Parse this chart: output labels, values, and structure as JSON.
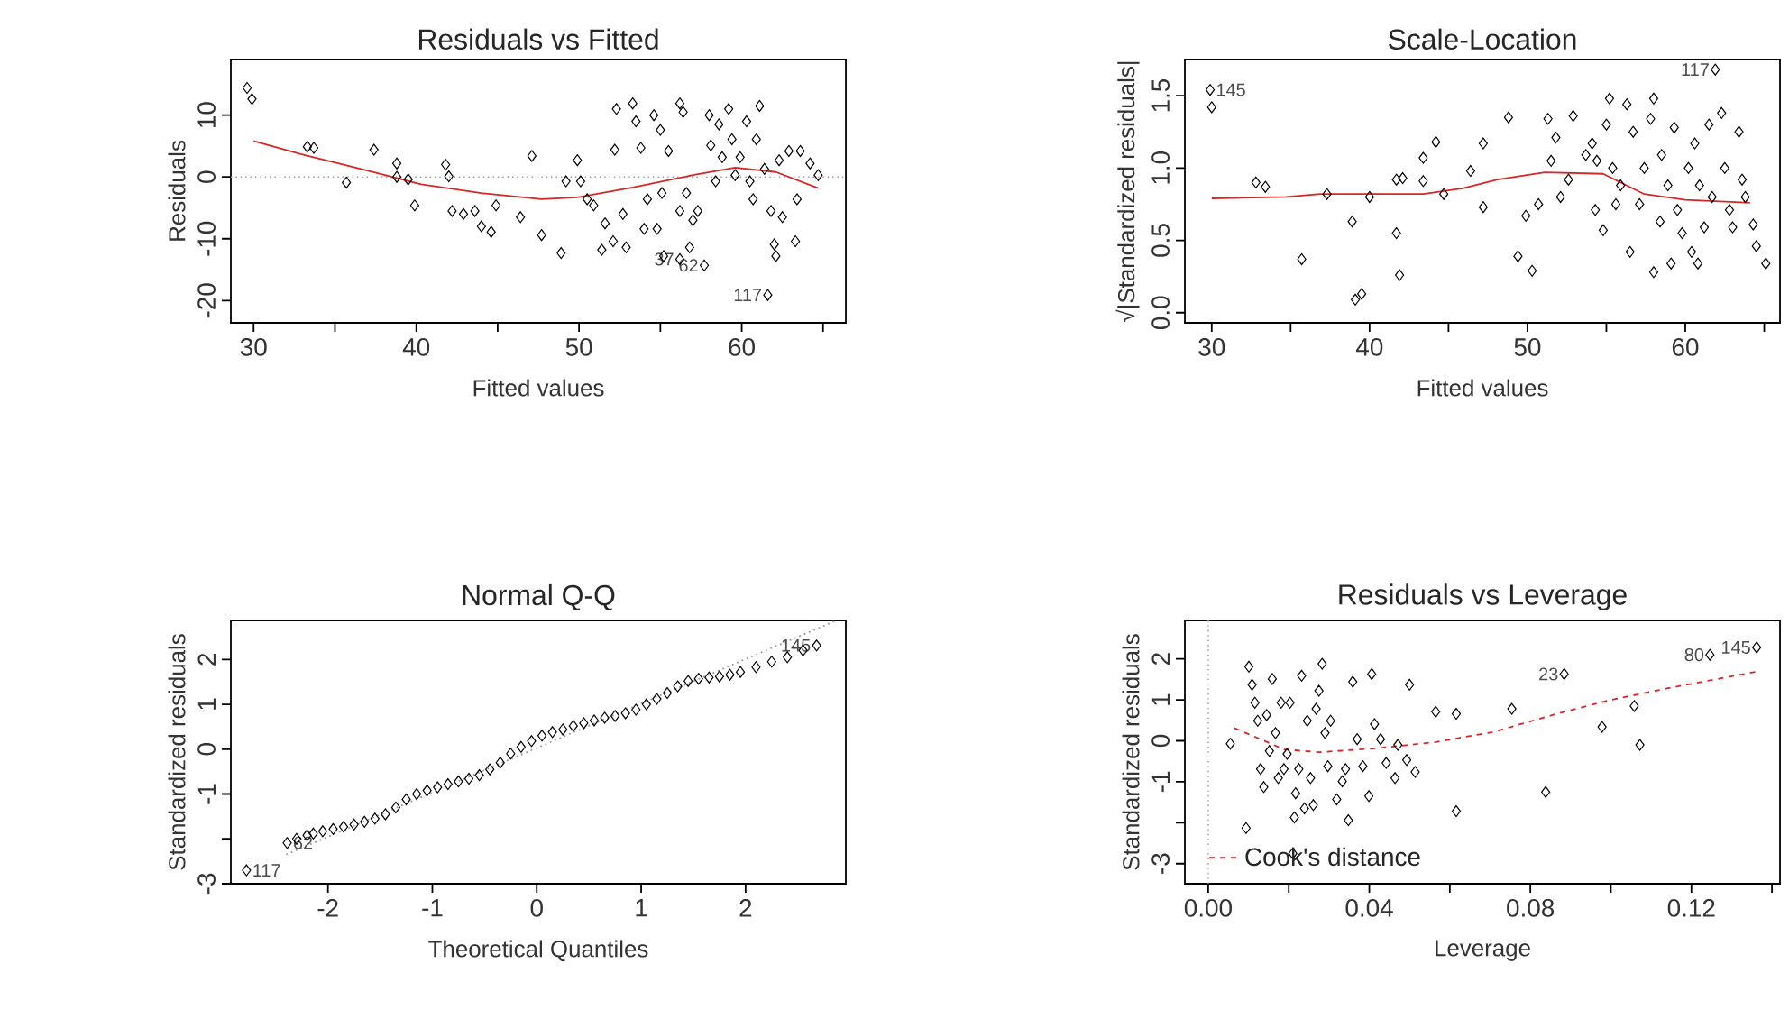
{
  "chart_data": [
    {
      "type": "scatter",
      "title": "Residuals vs Fitted",
      "xlabel": "Fitted values",
      "ylabel": "Residuals",
      "xlim": [
        28.6,
        66.4
      ],
      "ylim": [
        -23.6,
        19
      ],
      "xticks": [
        30,
        {
          "value": 35,
          "label": null
        },
        40,
        {
          "value": 45,
          "label": null
        },
        50,
        {
          "value": 55,
          "label": null
        },
        60,
        {
          "value": 65,
          "label": null
        }
      ],
      "yticks": [
        -20,
        -10,
        0,
        10
      ],
      "x": [
        29.6,
        29.9,
        33.3,
        33.7,
        35.7,
        37.4,
        38.8,
        38.8,
        39.5,
        39.9,
        41.8,
        42.0,
        42.2,
        42.9,
        43.6,
        44.0,
        44.6,
        44.9,
        46.4,
        47.1,
        47.7,
        48.9,
        49.2,
        49.9,
        50.1,
        50.5,
        50.9,
        51.4,
        51.6,
        52.1,
        52.2,
        52.3,
        52.7,
        52.9,
        53.3,
        53.5,
        53.8,
        54.0,
        54.2,
        54.6,
        54.8,
        55.0,
        55.1,
        55.2,
        55.5,
        56.2,
        56.2,
        56.4,
        56.6,
        56.8,
        57.0,
        57.3,
        57.7,
        58.0,
        58.1,
        58.4,
        58.6,
        58.8,
        59.2,
        59.4,
        59.6,
        59.9,
        60.3,
        60.5,
        60.7,
        60.9,
        61.1,
        61.4,
        61.6,
        61.8,
        62.0,
        62.1,
        62.3,
        62.5,
        62.9,
        63.3,
        63.4,
        63.6,
        64.2,
        64.7,
        56.2
      ],
      "series": [
        {
          "color": "#000000",
          "marker": "diamond",
          "values": [
            14.4,
            12.6,
            4.9,
            4.7,
            -0.9,
            4.4,
            2.2,
            0,
            -0.4,
            -4.6,
            2.0,
            0.1,
            -5.5,
            -6.0,
            -5.5,
            -8.0,
            -8.9,
            -4.6,
            -6.5,
            3.4,
            -9.4,
            -12.3,
            -0.7,
            2.7,
            -0.7,
            -3.6,
            -4.6,
            -11.8,
            -7.5,
            -10.4,
            4.4,
            11,
            -6.0,
            -11.4,
            11.9,
            9.0,
            4.7,
            -8.4,
            -3.6,
            10,
            -8.4,
            7.6,
            -2.6,
            -12.8,
            4.2,
            11.9,
            -5.5,
            10.5,
            -2.6,
            -11.4,
            -7.0,
            -5.5,
            -14.3,
            10,
            5.1,
            -0.7,
            8.5,
            3.2,
            11,
            6.1,
            0.3,
            3.2,
            9,
            -0.7,
            -3.6,
            6.1,
            11.5,
            1.3,
            -19.1,
            -5.5,
            -10.9,
            -12.8,
            2.7,
            -6.5,
            4.2,
            -10.4,
            -3.6,
            4.2,
            2.2,
            0.3,
            -13.3
          ]
        },
        {
          "type": "line",
          "color": "#d62728",
          "x": [
            30,
            32.9,
            36.6,
            40.3,
            44,
            47.7,
            49.9,
            53.3,
            57,
            59.6,
            62.1,
            64.7
          ],
          "values": [
            5.8,
            3.7,
            1.3,
            -1.2,
            -2.6,
            -3.6,
            -3.3,
            -1.7,
            0.3,
            1.5,
            0.8,
            -1.8
          ]
        }
      ],
      "ref_lines": [
        {
          "axis": "y",
          "value": 0,
          "color": "#999999",
          "line_style": "dotted"
        }
      ],
      "annotations": [
        {
          "text": "37",
          "x": 56.2,
          "y": -13.3
        },
        {
          "text": "62",
          "x": 57.7,
          "y": -14.3
        },
        {
          "text": "117",
          "x": 61.6,
          "y": -19.1
        }
      ]
    },
    {
      "type": "scatter",
      "title": "Scale-Location",
      "xlabel": "Fitted values",
      "ylabel": "√|Standardized residuals|",
      "xlim": [
        28.3,
        66
      ],
      "ylim": [
        -0.07,
        1.75
      ],
      "xticks": [
        30,
        {
          "value": 35,
          "label": null
        },
        40,
        {
          "value": 45,
          "label": null
        },
        50,
        {
          "value": 55,
          "label": null
        },
        60,
        {
          "value": 65,
          "label": null
        }
      ],
      "yticks": [
        {
          "value": 0,
          "label": "0.0"
        },
        {
          "value": 0.5,
          "label": "0.5"
        },
        {
          "value": 1,
          "label": "1.0"
        },
        {
          "value": 1.5,
          "label": "1.5"
        }
      ],
      "x": [
        29.9,
        30,
        32.8,
        33.4,
        35.7,
        37.3,
        38.9,
        39.1,
        39.5,
        40,
        41.7,
        41.7,
        41.9,
        42.1,
        43.4,
        43.4,
        44.2,
        44.7,
        46.4,
        47.2,
        47.2,
        48.8,
        49.4,
        49.9,
        50.3,
        50.7,
        51.3,
        51.5,
        51.8,
        52.1,
        52.6,
        52.9,
        53.7,
        54.1,
        54.3,
        54.4,
        54.8,
        55,
        55.2,
        55.4,
        55.6,
        55.9,
        56.3,
        56.5,
        56.7,
        57.1,
        57.4,
        57.8,
        58,
        58,
        58.4,
        58.5,
        58.9,
        59.1,
        59.3,
        59.5,
        59.8,
        60.2,
        60.4,
        60.6,
        60.8,
        60.9,
        61.2,
        61.5,
        61.7,
        61.9,
        62.3,
        62.5,
        62.8,
        63,
        63.4,
        63.6,
        63.8,
        64.3,
        64.5,
        65.1
      ],
      "series": [
        {
          "color": "#000000",
          "marker": "diamond",
          "values": [
            1.54,
            1.42,
            0.9,
            0.87,
            0.37,
            0.82,
            0.63,
            0.09,
            0.13,
            0.8,
            0.92,
            0.55,
            0.26,
            0.93,
            1.07,
            0.91,
            1.18,
            0.82,
            0.98,
            1.17,
            0.73,
            1.35,
            0.39,
            0.67,
            0.29,
            0.75,
            1.34,
            1.05,
            1.21,
            0.8,
            0.92,
            1.36,
            1.09,
            1.17,
            0.71,
            1.05,
            0.57,
            1.3,
            1.48,
            1.0,
            0.75,
            0.88,
            1.44,
            0.42,
            1.25,
            0.75,
            1.0,
            1.34,
            1.48,
            0.28,
            0.63,
            1.09,
            0.88,
            0.34,
            1.28,
            0.71,
            0.55,
            1.0,
            0.42,
            1.17,
            0.34,
            0.88,
            0.59,
            1.3,
            0.8,
            1.68,
            1.38,
            1.0,
            0.71,
            0.59,
            1.25,
            0.92,
            0.8,
            0.61,
            0.46,
            0.34
          ]
        },
        {
          "type": "line",
          "color": "#d62728",
          "x": [
            30,
            34.7,
            36.9,
            43.4,
            45.9,
            48.1,
            51.1,
            54.8,
            57.4,
            60,
            64.1
          ],
          "values": [
            0.79,
            0.8,
            0.82,
            0.82,
            0.86,
            0.92,
            0.97,
            0.96,
            0.82,
            0.78,
            0.76
          ]
        }
      ],
      "annotations": [
        {
          "text": "145",
          "x": 29.9,
          "y": 1.54
        },
        {
          "text": "117",
          "x": 61.9,
          "y": 1.68
        }
      ]
    },
    {
      "type": "scatter",
      "title": "Normal Q-Q",
      "xlabel": "Theoretical Quantiles",
      "ylabel": "Standardized residuals",
      "xlim": [
        -2.93,
        2.96
      ],
      "ylim": [
        -3.0,
        2.87
      ],
      "xticks": [
        -2,
        -1,
        0,
        1,
        2
      ],
      "yticks": [
        -3,
        {
          "value": -2,
          "label": null
        },
        -1,
        0,
        1,
        2
      ],
      "x": [
        -2.78,
        -2.39,
        -2.3,
        -2.2,
        -2.14,
        -2.05,
        -1.95,
        -1.85,
        -1.75,
        -1.65,
        -1.55,
        -1.45,
        -1.35,
        -1.25,
        -1.15,
        -1.05,
        -0.95,
        -0.85,
        -0.75,
        -0.65,
        -0.55,
        -0.45,
        -0.35,
        -0.25,
        -0.15,
        -0.05,
        0.05,
        0.15,
        0.25,
        0.35,
        0.45,
        0.55,
        0.65,
        0.75,
        0.85,
        0.95,
        1.05,
        1.15,
        1.25,
        1.35,
        1.45,
        1.55,
        1.65,
        1.75,
        1.85,
        1.95,
        2.1,
        2.25,
        2.4,
        2.55,
        2.68
      ],
      "series": [
        {
          "color": "#000000",
          "marker": "diamond",
          "values": [
            -2.7,
            -2.09,
            -2.0,
            -1.92,
            -1.88,
            -1.83,
            -1.78,
            -1.73,
            -1.68,
            -1.62,
            -1.55,
            -1.45,
            -1.3,
            -1.12,
            -1.0,
            -0.92,
            -0.85,
            -0.78,
            -0.72,
            -0.66,
            -0.58,
            -0.45,
            -0.3,
            -0.1,
            0.05,
            0.18,
            0.3,
            0.38,
            0.44,
            0.52,
            0.58,
            0.64,
            0.7,
            0.74,
            0.8,
            0.88,
            1.0,
            1.12,
            1.25,
            1.4,
            1.52,
            1.57,
            1.6,
            1.62,
            1.66,
            1.72,
            1.83,
            1.95,
            2.05,
            2.2,
            2.31
          ]
        },
        {
          "type": "line",
          "color": "#999999",
          "line_style": "dotted",
          "x": [
            -2.4,
            2.85
          ],
          "values": [
            -2.35,
            2.85
          ]
        }
      ],
      "annotations": [
        {
          "text": "117",
          "x": -2.78,
          "y": -2.7
        },
        {
          "text": "62",
          "x": -2.39,
          "y": -2.09
        },
        {
          "text": "145",
          "x": 2.68,
          "y": 2.31
        }
      ]
    },
    {
      "type": "scatter",
      "title": "Residuals vs Leverage",
      "xlabel": "Leverage",
      "ylabel": "Standardized residuals",
      "legend": "bottom left",
      "xlim": [
        -0.0058,
        0.142
      ],
      "ylim": [
        -3.49,
        2.94
      ],
      "xticks": [
        {
          "value": 0,
          "label": "0.00"
        },
        {
          "value": 0.02,
          "label": null
        },
        {
          "value": 0.04,
          "label": "0.04"
        },
        {
          "value": 0.06,
          "label": null
        },
        {
          "value": 0.08,
          "label": "0.08"
        },
        {
          "value": 0.1,
          "label": null
        },
        {
          "value": 0.12,
          "label": "0.12"
        },
        {
          "value": 0.14,
          "label": null
        }
      ],
      "yticks": [
        -3,
        {
          "value": -2,
          "label": null
        },
        -1,
        0,
        1,
        2
      ],
      "x": [
        0.0055,
        0.0094,
        0.0101,
        0.0109,
        0.0116,
        0.0123,
        0.013,
        0.0138,
        0.0145,
        0.0152,
        0.0159,
        0.0167,
        0.0174,
        0.0181,
        0.0188,
        0.0196,
        0.0203,
        0.021,
        0.0214,
        0.0217,
        0.0225,
        0.0232,
        0.0239,
        0.0246,
        0.0254,
        0.0261,
        0.0268,
        0.0275,
        0.0283,
        0.029,
        0.0297,
        0.0304,
        0.0319,
        0.0333,
        0.0341,
        0.0348,
        0.0359,
        0.037,
        0.0384,
        0.0399,
        0.0406,
        0.0413,
        0.0428,
        0.0442,
        0.0464,
        0.0471,
        0.0493,
        0.05,
        0.0514,
        0.0565,
        0.0616,
        0.0616,
        0.0754,
        0.0838,
        0.0884,
        0.0978,
        0.1058,
        0.1072,
        0.1246,
        0.1362
      ],
      "series": [
        {
          "color": "#000000",
          "marker": "diamond",
          "values": [
            -0.07,
            -2.13,
            1.81,
            1.37,
            0.93,
            0.49,
            -0.69,
            -1.13,
            0.63,
            -0.25,
            1.51,
            0.19,
            -0.91,
            0.93,
            -0.69,
            -0.32,
            0.93,
            -2.75,
            -1.87,
            -1.28,
            -0.69,
            1.59,
            -1.65,
            0.49,
            -0.91,
            -1.57,
            0.78,
            1.22,
            1.88,
            0.19,
            -0.62,
            0.49,
            -1.43,
            -0.99,
            -0.69,
            -1.94,
            1.44,
            0.04,
            -0.62,
            -1.35,
            1.63,
            0.41,
            0.04,
            -0.54,
            -0.91,
            -0.1,
            -0.47,
            1.37,
            -0.76,
            0.71,
            0.66,
            -1.72,
            0.78,
            -1.25,
            1.63,
            0.34,
            0.85,
            -0.1,
            2.1,
            2.28
          ]
        },
        {
          "type": "line",
          "name": "Cook's distance",
          "color": "#d62728",
          "line_style": "dashed",
          "x": [
            0.0065,
            0.013,
            0.0188,
            0.0275,
            0.042,
            0.0565,
            0.071,
            0.0855,
            0.1,
            0.1145,
            0.1362
          ],
          "values": [
            0.31,
            0.04,
            -0.21,
            -0.28,
            -0.18,
            -0.03,
            0.22,
            0.63,
            1.0,
            1.29,
            1.69
          ]
        }
      ],
      "ref_lines": [
        {
          "axis": "x",
          "value": 0,
          "color": "#999999",
          "line_style": "dotted"
        }
      ],
      "annotations": [
        {
          "text": "23",
          "x": 0.0884,
          "y": 1.63
        },
        {
          "text": "80",
          "x": 0.1246,
          "y": 2.1
        },
        {
          "text": "145",
          "x": 0.1362,
          "y": 2.28
        }
      ]
    }
  ]
}
